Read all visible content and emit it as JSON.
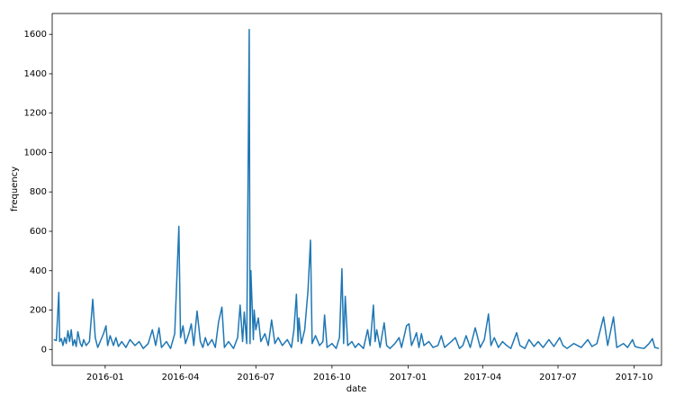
{
  "chart_data": {
    "type": "line",
    "xlabel": "date",
    "ylabel": "frequency",
    "series": [
      {
        "name": "frequency",
        "color": "#1f77b4",
        "x": [
          735902,
          735905,
          735908,
          735909,
          735911,
          735913,
          735915,
          735917,
          735919,
          735921,
          735923,
          735925,
          735927,
          735929,
          735931,
          735934,
          735936,
          735938,
          735941,
          735945,
          735949,
          735952,
          735955,
          735958,
          735962,
          735965,
          735967,
          735970,
          735974,
          735977,
          735980,
          735984,
          735989,
          735994,
          736000,
          736005,
          736010,
          736016,
          736021,
          736025,
          736029,
          736032,
          736038,
          736043,
          736048,
          736053,
          736055,
          736058,
          736061,
          736065,
          736068,
          736071,
          736075,
          736079,
          736082,
          736085,
          736088,
          736093,
          736097,
          736101,
          736105,
          736108,
          736113,
          736119,
          736124,
          736127,
          736130,
          736132,
          736135,
          736138,
          736139,
          736140,
          736143,
          736144,
          736146,
          736149,
          736152,
          736157,
          736161,
          736165,
          736169,
          736173,
          736178,
          736184,
          736189,
          736192,
          736195,
          736197,
          736198,
          736201,
          736205,
          736209,
          736212,
          736214,
          736218,
          736223,
          736227,
          736229,
          736232,
          736238,
          736243,
          736247,
          736250,
          736252,
          736254,
          736257,
          736262,
          736266,
          736270,
          736276,
          736281,
          736284,
          736288,
          736290,
          736292,
          736296,
          736301,
          736304,
          736308,
          736314,
          736319,
          736322,
          736328,
          736331,
          736334,
          736338,
          736340,
          736343,
          736346,
          736349,
          736355,
          736360,
          736366,
          736370,
          736374,
          736382,
          736387,
          736392,
          736396,
          736400,
          736405,
          736411,
          736417,
          736422,
          736427,
          736430,
          736434,
          736439,
          736444,
          736449,
          736454,
          736461,
          736465,
          736471,
          736476,
          736482,
          736487,
          736493,
          736500,
          736506,
          736513,
          736517,
          736522,
          736530,
          736539,
          736547,
          736552,
          736558,
          736566,
          736571,
          736578,
          736582,
          736590,
          736595,
          736601,
          736604,
          736608,
          736615,
          736621,
          736625,
          736628,
          736633
        ],
        "values": [
          50,
          45,
          290,
          40,
          55,
          20,
          60,
          30,
          95,
          40,
          100,
          20,
          50,
          15,
          90,
          30,
          15,
          50,
          20,
          40,
          255,
          60,
          10,
          40,
          80,
          120,
          20,
          70,
          20,
          60,
          15,
          40,
          10,
          50,
          20,
          40,
          5,
          30,
          100,
          20,
          110,
          10,
          40,
          5,
          80,
          625,
          60,
          120,
          30,
          80,
          130,
          20,
          195,
          40,
          10,
          60,
          20,
          50,
          10,
          140,
          215,
          10,
          40,
          5,
          60,
          225,
          40,
          190,
          30,
          1625,
          30,
          400,
          50,
          200,
          100,
          160,
          40,
          80,
          20,
          150,
          30,
          60,
          20,
          50,
          10,
          100,
          280,
          40,
          160,
          30,
          100,
          300,
          555,
          30,
          70,
          20,
          40,
          175,
          10,
          30,
          5,
          60,
          410,
          30,
          270,
          20,
          40,
          10,
          30,
          5,
          100,
          20,
          225,
          40,
          100,
          10,
          135,
          20,
          5,
          30,
          60,
          10,
          120,
          130,
          20,
          60,
          85,
          10,
          80,
          20,
          40,
          10,
          20,
          70,
          10,
          40,
          60,
          5,
          20,
          70,
          10,
          110,
          10,
          50,
          180,
          20,
          60,
          10,
          40,
          20,
          5,
          85,
          20,
          5,
          50,
          15,
          40,
          10,
          50,
          15,
          60,
          20,
          5,
          30,
          10,
          50,
          15,
          30,
          165,
          20,
          165,
          10,
          30,
          10,
          50,
          15,
          10,
          5,
          30,
          55,
          10,
          5
        ]
      }
    ],
    "xlim": [
      735900,
      736636
    ],
    "xticks": [
      {
        "value": 735964,
        "label": "2016-01"
      },
      {
        "value": 736055,
        "label": "2016-04"
      },
      {
        "value": 736146,
        "label": "2016-07"
      },
      {
        "value": 736238,
        "label": "2016-10"
      },
      {
        "value": 736330,
        "label": "2017-01"
      },
      {
        "value": 736420,
        "label": "2017-04"
      },
      {
        "value": 736511,
        "label": "2017-07"
      },
      {
        "value": 736603,
        "label": "2017-10"
      }
    ],
    "ylim": [
      -81,
      1706
    ],
    "yticks": [
      0,
      200,
      400,
      600,
      800,
      1000,
      1200,
      1400,
      1600
    ],
    "grid": false
  }
}
